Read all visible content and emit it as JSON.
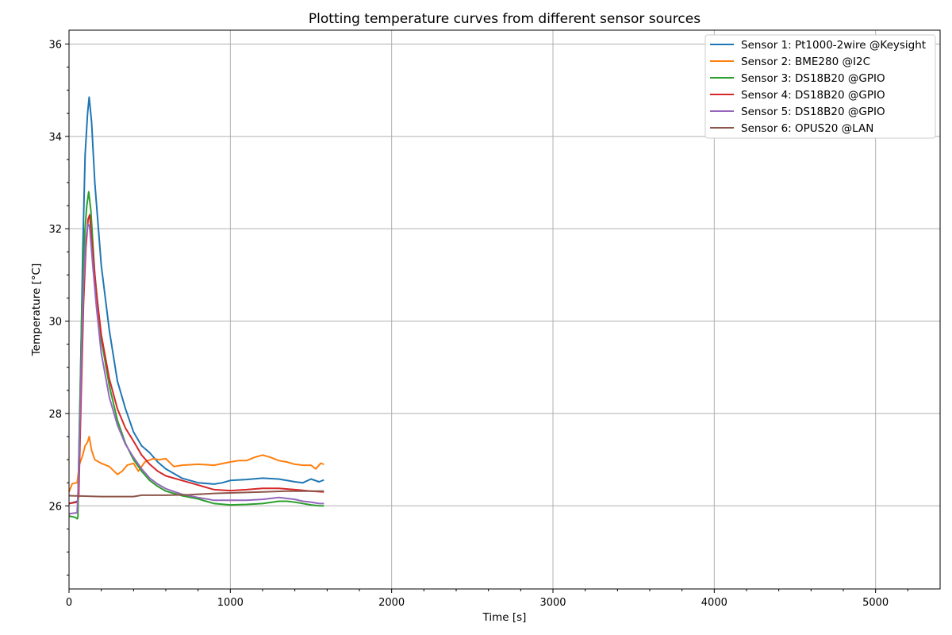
{
  "chart_data": {
    "type": "line",
    "title": "Plotting temperature curves from different sensor sources",
    "xlabel": "Time [s]",
    "ylabel": "Temperature [°C]",
    "xlim": [
      0,
      5400
    ],
    "ylim": [
      24.2,
      36.3
    ],
    "xticks": [
      0,
      1000,
      2000,
      3000,
      4000,
      5000
    ],
    "yticks": [
      26,
      28,
      30,
      32,
      34,
      36
    ],
    "xticklabels": [
      "0",
      "1000",
      "2000",
      "3000",
      "4000",
      "5000"
    ],
    "yticklabels": [
      "26",
      "28",
      "30",
      "32",
      "34",
      "36"
    ],
    "grid": true,
    "legend_position": "top-right",
    "series": [
      {
        "name": "Sensor 1: Pt1000-2wire @Keysight",
        "color": "#1f77b4",
        "points": [
          [
            0,
            26.05
          ],
          [
            55,
            26.1
          ],
          [
            70,
            28.5
          ],
          [
            85,
            31.5
          ],
          [
            100,
            33.6
          ],
          [
            115,
            34.5
          ],
          [
            125,
            34.85
          ],
          [
            140,
            34.3
          ],
          [
            160,
            33.0
          ],
          [
            200,
            31.2
          ],
          [
            250,
            29.8
          ],
          [
            300,
            28.7
          ],
          [
            350,
            28.1
          ],
          [
            400,
            27.6
          ],
          [
            450,
            27.3
          ],
          [
            500,
            27.15
          ],
          [
            550,
            26.95
          ],
          [
            600,
            26.8
          ],
          [
            700,
            26.6
          ],
          [
            800,
            26.5
          ],
          [
            900,
            26.47
          ],
          [
            950,
            26.5
          ],
          [
            1000,
            26.55
          ],
          [
            1100,
            26.57
          ],
          [
            1200,
            26.6
          ],
          [
            1300,
            26.58
          ],
          [
            1400,
            26.52
          ],
          [
            1450,
            26.5
          ],
          [
            1500,
            26.58
          ],
          [
            1550,
            26.52
          ],
          [
            1580,
            26.56
          ]
        ]
      },
      {
        "name": "Sensor 2: BME280 @I2C",
        "color": "#ff7f0e",
        "points": [
          [
            0,
            26.3
          ],
          [
            20,
            26.48
          ],
          [
            50,
            26.5
          ],
          [
            65,
            26.9
          ],
          [
            85,
            27.1
          ],
          [
            100,
            27.3
          ],
          [
            115,
            27.38
          ],
          [
            125,
            27.5
          ],
          [
            140,
            27.2
          ],
          [
            160,
            27.0
          ],
          [
            200,
            26.92
          ],
          [
            250,
            26.85
          ],
          [
            300,
            26.68
          ],
          [
            330,
            26.75
          ],
          [
            360,
            26.88
          ],
          [
            400,
            26.92
          ],
          [
            430,
            26.75
          ],
          [
            470,
            26.95
          ],
          [
            520,
            27.02
          ],
          [
            560,
            27.0
          ],
          [
            600,
            27.02
          ],
          [
            650,
            26.85
          ],
          [
            700,
            26.88
          ],
          [
            800,
            26.9
          ],
          [
            900,
            26.88
          ],
          [
            1000,
            26.95
          ],
          [
            1050,
            26.98
          ],
          [
            1100,
            26.98
          ],
          [
            1150,
            27.05
          ],
          [
            1200,
            27.1
          ],
          [
            1250,
            27.05
          ],
          [
            1300,
            26.98
          ],
          [
            1350,
            26.95
          ],
          [
            1400,
            26.9
          ],
          [
            1450,
            26.88
          ],
          [
            1500,
            26.88
          ],
          [
            1530,
            26.8
          ],
          [
            1560,
            26.92
          ],
          [
            1580,
            26.9
          ]
        ]
      },
      {
        "name": "Sensor 3: DS18B20 @GPIO",
        "color": "#2ca02c",
        "points": [
          [
            0,
            25.78
          ],
          [
            40,
            25.75
          ],
          [
            50,
            25.72
          ],
          [
            55,
            25.75
          ],
          [
            65,
            27.8
          ],
          [
            80,
            30.3
          ],
          [
            95,
            31.8
          ],
          [
            110,
            32.5
          ],
          [
            122,
            32.8
          ],
          [
            135,
            32.4
          ],
          [
            160,
            31.0
          ],
          [
            200,
            29.6
          ],
          [
            250,
            28.6
          ],
          [
            300,
            27.85
          ],
          [
            350,
            27.35
          ],
          [
            400,
            27.0
          ],
          [
            450,
            26.75
          ],
          [
            500,
            26.55
          ],
          [
            550,
            26.42
          ],
          [
            600,
            26.32
          ],
          [
            700,
            26.22
          ],
          [
            800,
            26.15
          ],
          [
            850,
            26.1
          ],
          [
            900,
            26.05
          ],
          [
            1000,
            26.02
          ],
          [
            1100,
            26.03
          ],
          [
            1200,
            26.05
          ],
          [
            1300,
            26.1
          ],
          [
            1350,
            26.1
          ],
          [
            1400,
            26.08
          ],
          [
            1500,
            26.02
          ],
          [
            1550,
            26.0
          ],
          [
            1580,
            26.0
          ]
        ]
      },
      {
        "name": "Sensor 4: DS18B20 @GPIO",
        "color": "#d62728",
        "points": [
          [
            0,
            26.05
          ],
          [
            50,
            26.08
          ],
          [
            60,
            26.2
          ],
          [
            75,
            28.4
          ],
          [
            90,
            30.4
          ],
          [
            105,
            31.6
          ],
          [
            118,
            32.2
          ],
          [
            128,
            32.3
          ],
          [
            145,
            31.6
          ],
          [
            170,
            30.6
          ],
          [
            200,
            29.7
          ],
          [
            250,
            28.75
          ],
          [
            300,
            28.1
          ],
          [
            350,
            27.68
          ],
          [
            400,
            27.4
          ],
          [
            450,
            27.1
          ],
          [
            500,
            26.9
          ],
          [
            550,
            26.75
          ],
          [
            600,
            26.65
          ],
          [
            700,
            26.55
          ],
          [
            800,
            26.45
          ],
          [
            900,
            26.35
          ],
          [
            1000,
            26.33
          ],
          [
            1100,
            26.35
          ],
          [
            1200,
            26.38
          ],
          [
            1300,
            26.38
          ],
          [
            1400,
            26.35
          ],
          [
            1500,
            26.32
          ],
          [
            1580,
            26.3
          ]
        ]
      },
      {
        "name": "Sensor 5: DS18B20 @GPIO",
        "color": "#9467bd",
        "points": [
          [
            0,
            25.83
          ],
          [
            50,
            25.85
          ],
          [
            60,
            26.6
          ],
          [
            75,
            29.0
          ],
          [
            90,
            30.8
          ],
          [
            105,
            31.8
          ],
          [
            118,
            32.1
          ],
          [
            128,
            32.05
          ],
          [
            145,
            31.3
          ],
          [
            170,
            30.3
          ],
          [
            200,
            29.3
          ],
          [
            250,
            28.35
          ],
          [
            300,
            27.75
          ],
          [
            350,
            27.33
          ],
          [
            400,
            27.05
          ],
          [
            450,
            26.8
          ],
          [
            500,
            26.6
          ],
          [
            550,
            26.47
          ],
          [
            600,
            26.37
          ],
          [
            700,
            26.25
          ],
          [
            800,
            26.18
          ],
          [
            900,
            26.12
          ],
          [
            1000,
            26.12
          ],
          [
            1100,
            26.12
          ],
          [
            1200,
            26.14
          ],
          [
            1300,
            26.18
          ],
          [
            1400,
            26.14
          ],
          [
            1450,
            26.1
          ],
          [
            1500,
            26.08
          ],
          [
            1550,
            26.05
          ],
          [
            1580,
            26.05
          ]
        ]
      },
      {
        "name": "Sensor 6: OPUS20 @LAN",
        "color": "#8c564b",
        "points": [
          [
            0,
            26.22
          ],
          [
            200,
            26.2
          ],
          [
            400,
            26.2
          ],
          [
            450,
            26.23
          ],
          [
            600,
            26.23
          ],
          [
            750,
            26.24
          ],
          [
            900,
            26.27
          ],
          [
            1000,
            26.28
          ],
          [
            1200,
            26.3
          ],
          [
            1350,
            26.32
          ],
          [
            1450,
            26.32
          ],
          [
            1580,
            26.32
          ]
        ]
      }
    ]
  }
}
